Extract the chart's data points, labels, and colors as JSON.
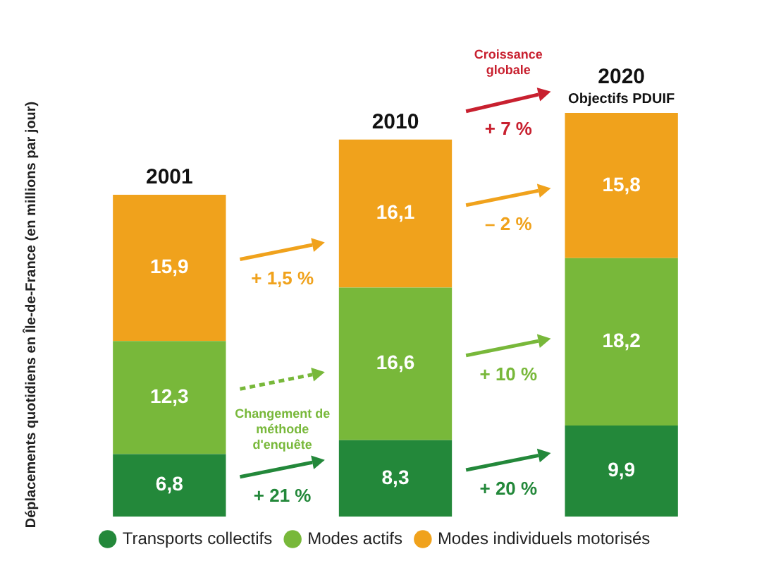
{
  "chart_data": {
    "type": "bar",
    "stacked": true,
    "legend": "bottom",
    "ylabel": "Déplacements quotidiens en Île-de-France (en millions par jour)",
    "categories": [
      "2001",
      "2010",
      "2020"
    ],
    "series": [
      {
        "name": "Transports collectifs",
        "color": "#23883a",
        "values": [
          6.8,
          8.3,
          9.9
        ],
        "value_labels": [
          "6,8",
          "8,3",
          "9,9"
        ]
      },
      {
        "name": "Modes actifs",
        "color": "#78b83a",
        "values": [
          12.3,
          16.6,
          18.2
        ],
        "value_labels": [
          "12,3",
          "16,6",
          "18,2"
        ]
      },
      {
        "name": "Modes individuels motorisés",
        "color": "#f0a21c",
        "values": [
          15.9,
          16.1,
          15.8
        ],
        "value_labels": [
          "15,9",
          "16,1",
          "15,8"
        ]
      }
    ],
    "annotations": [
      "+ 1,5 %",
      "Changement de méthode d'enquête",
      "+ 21 %",
      "Croissance globale",
      "+ 7 %",
      "– 2 %",
      "+ 10 %",
      "+ 20 %",
      "Objectifs PDUIF"
    ]
  }
}
